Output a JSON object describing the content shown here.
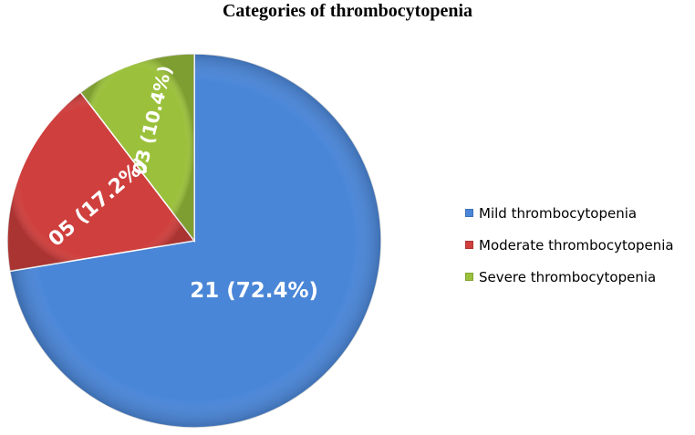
{
  "chart_data": {
    "type": "pie",
    "title": "Categories of thrombocytopenia",
    "slices": [
      {
        "label": "Mild thrombocytopenia",
        "value": 72.4,
        "data_label": "21 (72.4%)",
        "color": "#4a86d8"
      },
      {
        "label": "Moderate thrombocytopenia",
        "value": 17.2,
        "data_label": "05 (17.2%)",
        "color": "#cf3f3d"
      },
      {
        "label": "Severe thrombocytopenia",
        "value": 10.4,
        "data_label": "03 (10.4%)",
        "color": "#9bc13c"
      }
    ],
    "legend_position": "right",
    "style": "3d-beveled"
  }
}
